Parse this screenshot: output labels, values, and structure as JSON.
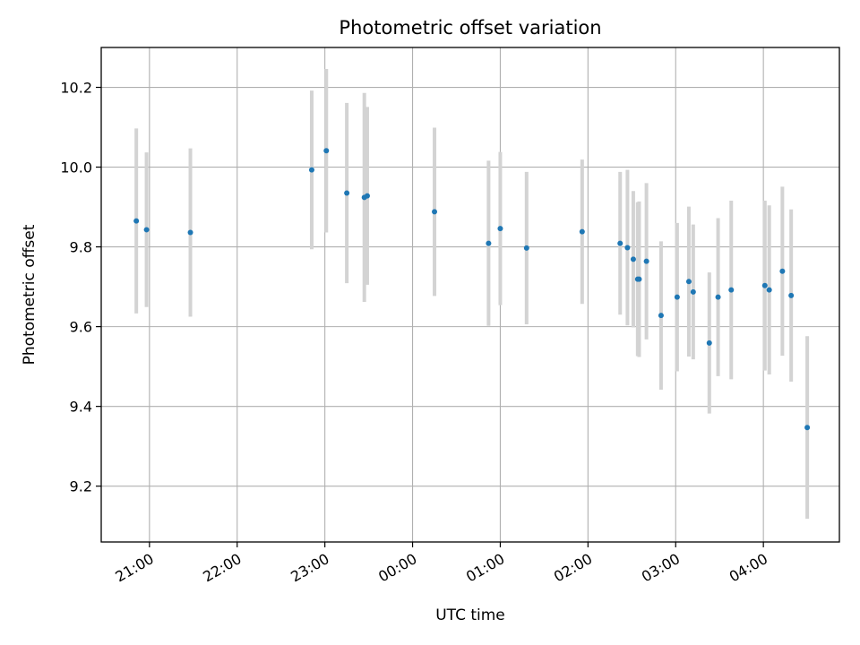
{
  "chart_data": {
    "type": "scatter",
    "title": "Photometric offset variation",
    "xlabel": "UTC time",
    "ylabel": "Photometric offset",
    "x_unit": "UTC time (HH:MM)",
    "xlim": [
      "20:27",
      "04:52"
    ],
    "ylim": [
      9.06,
      10.3
    ],
    "x_ticks": [
      "21:00",
      "22:00",
      "23:00",
      "00:00",
      "01:00",
      "02:00",
      "03:00",
      "04:00"
    ],
    "y_ticks": [
      9.2,
      9.4,
      9.6,
      9.8,
      10.0,
      10.2
    ],
    "y_tick_labels": [
      "9.2",
      "9.4",
      "9.6",
      "9.8",
      "10.0",
      "10.2"
    ],
    "grid": true,
    "legend": "none",
    "point_color": "#1f77b4",
    "errorbar_color": "#d3d3d3",
    "points": [
      {
        "x": "20:51",
        "y": 9.865,
        "yerr": 0.232
      },
      {
        "x": "20:58",
        "y": 9.843,
        "yerr": 0.194
      },
      {
        "x": "21:28",
        "y": 9.836,
        "yerr": 0.211
      },
      {
        "x": "22:51",
        "y": 9.993,
        "yerr": 0.199
      },
      {
        "x": "23:01",
        "y": 10.041,
        "yerr": 0.205
      },
      {
        "x": "23:15",
        "y": 9.935,
        "yerr": 0.226
      },
      {
        "x": "23:27",
        "y": 9.924,
        "yerr": 0.262
      },
      {
        "x": "23:29",
        "y": 9.928,
        "yerr": 0.223
      },
      {
        "x": "00:15",
        "y": 9.888,
        "yerr": 0.211
      },
      {
        "x": "00:52",
        "y": 9.809,
        "yerr": 0.207
      },
      {
        "x": "01:00",
        "y": 9.846,
        "yerr": 0.192
      },
      {
        "x": "01:18",
        "y": 9.797,
        "yerr": 0.191
      },
      {
        "x": "01:56",
        "y": 9.838,
        "yerr": 0.181
      },
      {
        "x": "02:22",
        "y": 9.809,
        "yerr": 0.179
      },
      {
        "x": "02:27",
        "y": 9.798,
        "yerr": 0.195
      },
      {
        "x": "02:31",
        "y": 9.769,
        "yerr": 0.171
      },
      {
        "x": "02:34",
        "y": 9.719,
        "yerr": 0.193
      },
      {
        "x": "02:35",
        "y": 9.719,
        "yerr": 0.195
      },
      {
        "x": "02:40",
        "y": 9.764,
        "yerr": 0.196
      },
      {
        "x": "02:50",
        "y": 9.628,
        "yerr": 0.186
      },
      {
        "x": "03:01",
        "y": 9.674,
        "yerr": 0.186
      },
      {
        "x": "03:09",
        "y": 9.713,
        "yerr": 0.188
      },
      {
        "x": "03:12",
        "y": 9.687,
        "yerr": 0.169
      },
      {
        "x": "03:23",
        "y": 9.559,
        "yerr": 0.177
      },
      {
        "x": "03:29",
        "y": 9.674,
        "yerr": 0.198
      },
      {
        "x": "03:38",
        "y": 9.692,
        "yerr": 0.224
      },
      {
        "x": "04:01",
        "y": 9.703,
        "yerr": 0.213
      },
      {
        "x": "04:04",
        "y": 9.692,
        "yerr": 0.212
      },
      {
        "x": "04:13",
        "y": 9.739,
        "yerr": 0.212
      },
      {
        "x": "04:19",
        "y": 9.678,
        "yerr": 0.216
      },
      {
        "x": "04:30",
        "y": 9.347,
        "yerr": 0.229
      }
    ]
  }
}
